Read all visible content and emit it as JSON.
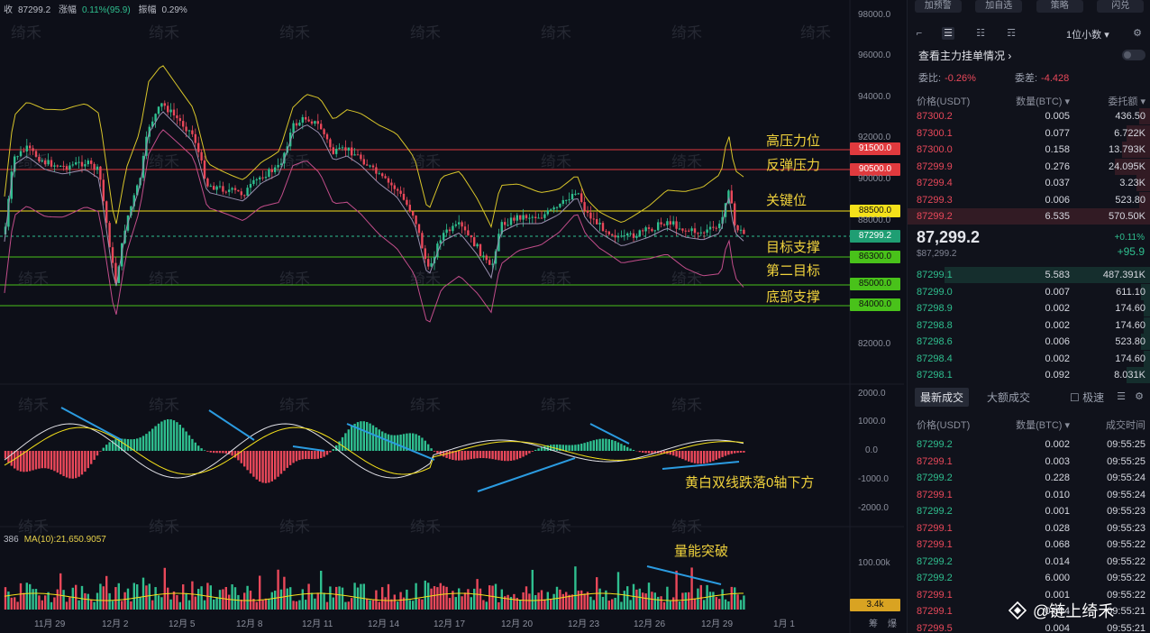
{
  "stats": {
    "close_label": "收",
    "close": "87299.2",
    "change_label": "涨幅",
    "change": "0.11%(95.9)",
    "amplitude_label": "振幅",
    "amplitude": "0.29%"
  },
  "volume_indicator": {
    "prefix": "386",
    "ma_label": "MA(10):21,650.9057"
  },
  "annotations": {
    "high_pressure": "高压力位",
    "rebound_pressure": "反弹压力",
    "key_level": "关键位",
    "target_support": "目标支撑",
    "second_target": "第二目标",
    "bottom_support": "底部支撑",
    "macd_note": "黄白双线跌落0轴下方",
    "volume_note": "量能突破"
  },
  "price_tags": [
    {
      "label": "91500.0",
      "color": "#e03a3e",
      "text_color": "#ffffff"
    },
    {
      "label": "90500.0",
      "color": "#e03a3e",
      "text_color": "#ffffff"
    },
    {
      "label": "88500.0",
      "color": "#f5e11a",
      "text_color": "#111111"
    },
    {
      "label": "87299.2",
      "color": "#1f9e73",
      "text_color": "#ffffff"
    },
    {
      "label": "86300.0",
      "color": "#49c21a",
      "text_color": "#111111"
    },
    {
      "label": "85000.0",
      "color": "#49c21a",
      "text_color": "#111111"
    },
    {
      "label": "84000.0",
      "color": "#49c21a",
      "text_color": "#111111"
    }
  ],
  "price_axis": [
    "98000.0",
    "96000.0",
    "94000.0",
    "92000.0",
    "90000.0",
    "88000.0",
    "82000.0"
  ],
  "macd_axis": [
    "2000.0",
    "1000.0",
    "0.0",
    "-1000.0",
    "-2000.0"
  ],
  "volume_axis": [
    "100.00k"
  ],
  "volume_tag": "3.4k",
  "x_axis": [
    "11月 29",
    "12月 2",
    "12月 5",
    "12月 8",
    "12月 11",
    "12月 14",
    "12月 17",
    "12月 20",
    "12月 23",
    "12月 26",
    "12月 29",
    "1月 1"
  ],
  "x_axis_tail": [
    "筹",
    "爆"
  ],
  "watermark": "绮禾",
  "colors": {
    "up": "#2fbf8f",
    "down": "#e9485a",
    "yellow": "#f5e11a",
    "boll_upper": "#d8c52a",
    "boll_mid": "#9a8fb0",
    "boll_lower": "#c24d8a"
  },
  "panel": {
    "top_buttons": [
      "加预警",
      "加自选",
      "策略",
      "闪兑"
    ],
    "decimal": "1位小数",
    "section_title": "查看主力挂单情况",
    "ratio_label": "委比:",
    "ratio": "-0.26%",
    "diff_label": "委差:",
    "diff": "-4.428",
    "ob_headers": [
      "价格(USDT)",
      "数量(BTC)",
      "委托额"
    ],
    "asks": [
      {
        "price": "87300.2",
        "qty": "0.005",
        "amount": "436.50",
        "depth": 0.05
      },
      {
        "price": "87300.1",
        "qty": "0.077",
        "amount": "6.722K",
        "depth": 0.1
      },
      {
        "price": "87300.0",
        "qty": "0.158",
        "amount": "13.793K",
        "depth": 0.12
      },
      {
        "price": "87299.9",
        "qty": "0.276",
        "amount": "24.095K",
        "depth": 0.15
      },
      {
        "price": "87299.4",
        "qty": "0.037",
        "amount": "3.23K",
        "depth": 0.06
      },
      {
        "price": "87299.3",
        "qty": "0.006",
        "amount": "523.80",
        "depth": 0.05
      },
      {
        "price": "87299.2",
        "qty": "6.535",
        "amount": "570.50K",
        "depth": 1.0
      }
    ],
    "last_price": "87,299.2",
    "last_price_usd": "$87,299.2",
    "pct_change": "+0.11%",
    "abs_change": "+95.9",
    "bids": [
      {
        "price": "87299.1",
        "qty": "5.583",
        "amount": "487.391K",
        "depth": 0.85
      },
      {
        "price": "87299.0",
        "qty": "0.007",
        "amount": "611.10",
        "depth": 0.04
      },
      {
        "price": "87298.9",
        "qty": "0.002",
        "amount": "174.60",
        "depth": 0.03
      },
      {
        "price": "87298.8",
        "qty": "0.002",
        "amount": "174.60",
        "depth": 0.03
      },
      {
        "price": "87298.6",
        "qty": "0.006",
        "amount": "523.80",
        "depth": 0.04
      },
      {
        "price": "87298.4",
        "qty": "0.002",
        "amount": "174.60",
        "depth": 0.03
      },
      {
        "price": "87298.1",
        "qty": "0.092",
        "amount": "8.031K",
        "depth": 0.1
      }
    ],
    "trade_tabs": [
      "最新成交",
      "大额成交",
      "极速"
    ],
    "trade_headers": [
      "价格(USDT)",
      "数量(BTC)",
      "成交时间"
    ],
    "trades": [
      {
        "price": "87299.2",
        "qty": "0.002",
        "time": "09:55:25",
        "side": "buy"
      },
      {
        "price": "87299.1",
        "qty": "0.003",
        "time": "09:55:25",
        "side": "sell"
      },
      {
        "price": "87299.2",
        "qty": "0.228",
        "time": "09:55:24",
        "side": "buy"
      },
      {
        "price": "87299.1",
        "qty": "0.010",
        "time": "09:55:24",
        "side": "sell"
      },
      {
        "price": "87299.2",
        "qty": "0.001",
        "time": "09:55:23",
        "side": "buy"
      },
      {
        "price": "87299.1",
        "qty": "0.028",
        "time": "09:55:23",
        "side": "sell"
      },
      {
        "price": "87299.1",
        "qty": "0.068",
        "time": "09:55:22",
        "side": "sell"
      },
      {
        "price": "87299.2",
        "qty": "0.014",
        "time": "09:55:22",
        "side": "buy"
      },
      {
        "price": "87299.2",
        "qty": "6.000",
        "time": "09:55:22",
        "side": "buy"
      },
      {
        "price": "87299.1",
        "qty": "0.001",
        "time": "09:55:22",
        "side": "sell"
      },
      {
        "price": "87299.1",
        "qty": "0.004",
        "time": "09:55:21",
        "side": "sell"
      },
      {
        "price": "87299.5",
        "qty": "0.004",
        "time": "09:55:21",
        "side": "sell"
      }
    ],
    "brand": "@链上绮禾"
  }
}
